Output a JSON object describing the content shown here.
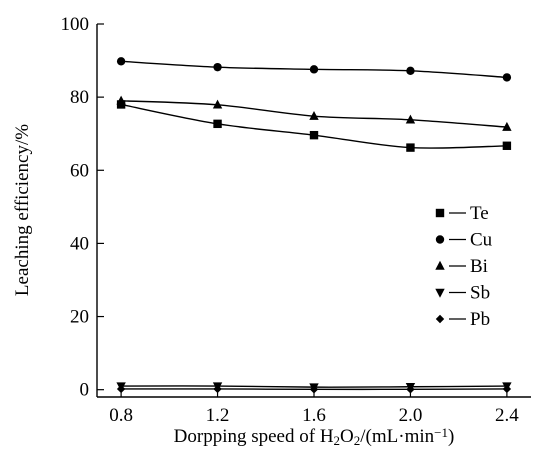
{
  "chart_data": {
    "type": "line",
    "xlabel": "Dorpping speed of H2O2/(mL·min−1)",
    "ylabel": "Leaching efficiency/%",
    "xlim": [
      0.7,
      2.5
    ],
    "ylim": [
      -2,
      100
    ],
    "xticks": [
      0.8,
      1.2,
      1.6,
      2.0,
      2.4
    ],
    "xtick_labels": [
      "0.8",
      "1.2",
      "1.6",
      "2.0",
      "2.4"
    ],
    "yticks": [
      0,
      20,
      40,
      60,
      80,
      100
    ],
    "ytick_labels": [
      "0",
      "20",
      "40",
      "60",
      "80",
      "100"
    ],
    "grid": false,
    "legend_placement": "right-middle",
    "series": [
      {
        "name": "Te",
        "marker": "square",
        "x": [
          0.8,
          1.2,
          1.6,
          2.0,
          2.4
        ],
        "values": [
          78,
          72.7,
          69.6,
          66.2,
          66.7
        ]
      },
      {
        "name": "Cu",
        "marker": "circle",
        "x": [
          0.8,
          1.2,
          1.6,
          2.0,
          2.4
        ],
        "values": [
          89.8,
          88.2,
          87.6,
          87.2,
          85.4
        ]
      },
      {
        "name": "Bi",
        "marker": "triangle-up",
        "x": [
          0.8,
          1.2,
          1.6,
          2.0,
          2.4
        ],
        "values": [
          79,
          77.9,
          74.8,
          73.8,
          71.8
        ]
      },
      {
        "name": "Sb",
        "marker": "triangle-down",
        "x": [
          0.8,
          1.2,
          1.6,
          2.0,
          2.4
        ],
        "values": [
          1,
          1,
          0.7,
          0.8,
          1
        ]
      },
      {
        "name": "Pb",
        "marker": "diamond",
        "x": [
          0.8,
          1.2,
          1.6,
          2.0,
          2.4
        ],
        "values": [
          0.2,
          0.2,
          0.1,
          0.1,
          0.2
        ]
      }
    ]
  }
}
